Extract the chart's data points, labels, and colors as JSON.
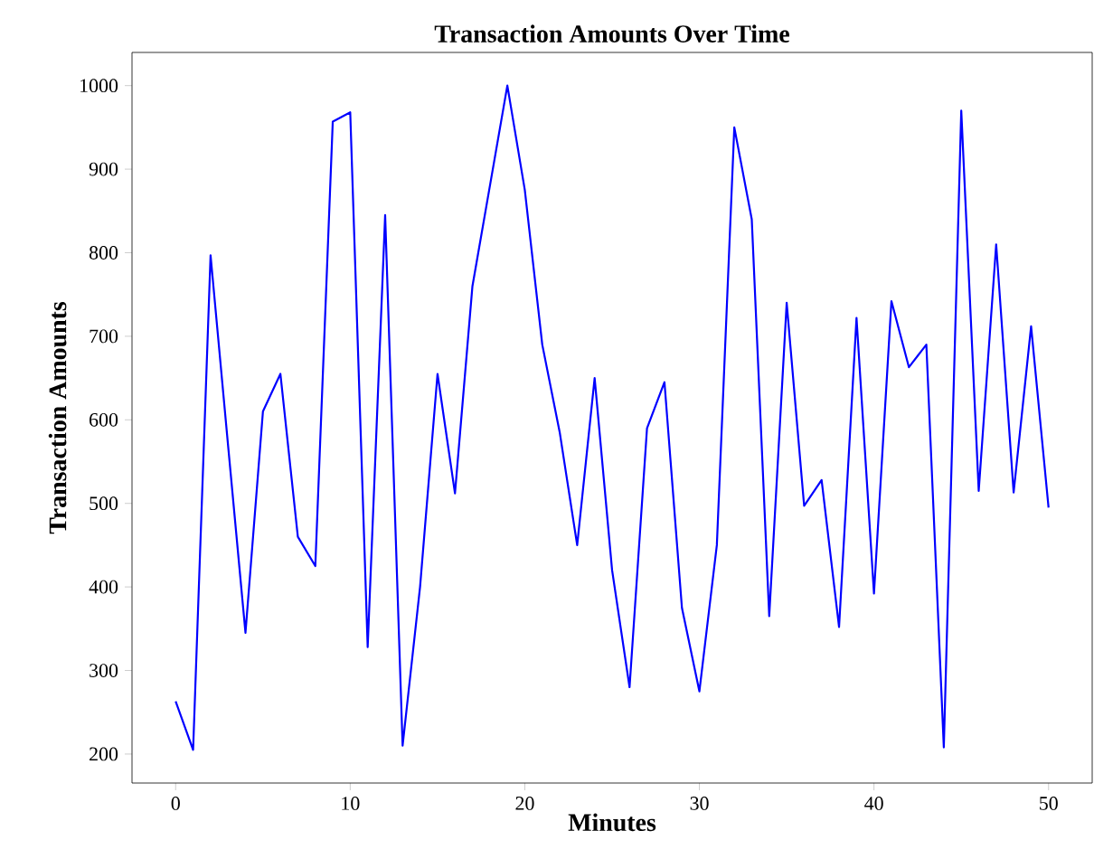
{
  "chart_data": {
    "type": "line",
    "title": "Transaction Amounts Over Time",
    "xlabel": "Minutes",
    "ylabel": "Transaction Amounts",
    "x": [
      0,
      1,
      2,
      3,
      4,
      5,
      6,
      7,
      8,
      9,
      10,
      11,
      12,
      13,
      14,
      15,
      16,
      17,
      18,
      19,
      20,
      21,
      22,
      23,
      24,
      25,
      26,
      27,
      28,
      29,
      30,
      31,
      32,
      33,
      34,
      35,
      36,
      37,
      38,
      39,
      40,
      41,
      42,
      43,
      44,
      45,
      46,
      47,
      48,
      49,
      50
    ],
    "series": [
      {
        "color": "#0000ff",
        "values": [
          263,
          205,
          797,
          570,
          345,
          610,
          655,
          460,
          425,
          957,
          968,
          328,
          845,
          210,
          400,
          655,
          512,
          760,
          880,
          1000,
          875,
          690,
          585,
          450,
          650,
          420,
          280,
          590,
          645,
          375,
          275,
          450,
          950,
          840,
          365,
          740,
          497,
          528,
          352,
          722,
          392,
          742,
          663,
          690,
          208,
          970,
          515,
          810,
          513,
          712,
          495
        ]
      }
    ],
    "xlim": [
      -2.5,
      52.5
    ],
    "ylim": [
      165.3,
      1039.7
    ],
    "xticks": [
      0,
      10,
      20,
      30,
      40,
      50
    ],
    "yticks": [
      200,
      300,
      400,
      500,
      600,
      700,
      800,
      900,
      1000
    ],
    "grid": false,
    "marker": "none",
    "line_style": "solid"
  }
}
